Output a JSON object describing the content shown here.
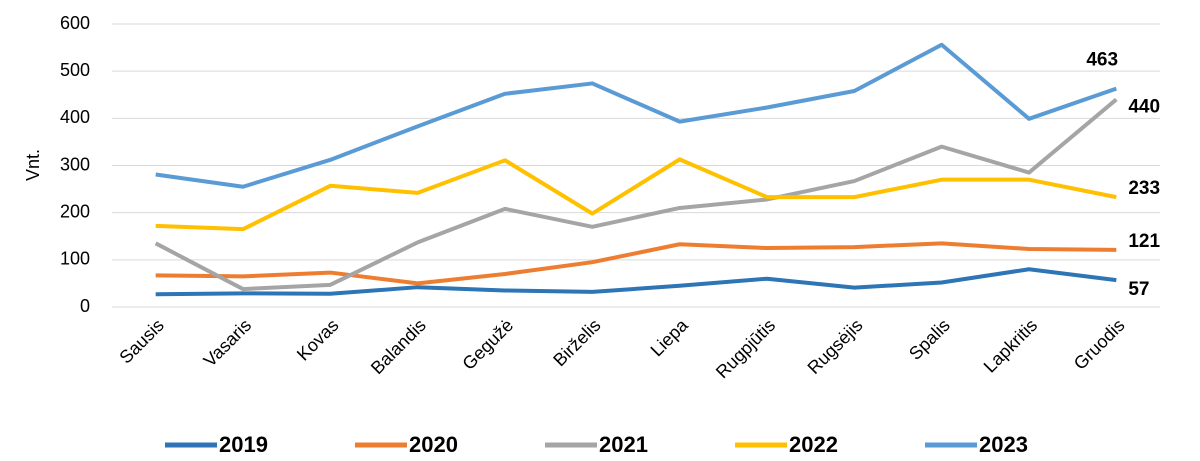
{
  "chart_data": {
    "type": "line",
    "categories": [
      "Sausis",
      "Vasaris",
      "Kovas",
      "Balandis",
      "Gegužė",
      "Birželis",
      "Liepa",
      "Rugpjūtis",
      "Rugsėjis",
      "Spalis",
      "Lapkritis",
      "Gruodis"
    ],
    "series": [
      {
        "name": "2019",
        "color": "#2e75b6",
        "values": [
          27,
          29,
          28,
          42,
          35,
          32,
          45,
          60,
          41,
          52,
          80,
          57
        ]
      },
      {
        "name": "2020",
        "color": "#ed7d31",
        "values": [
          67,
          65,
          73,
          50,
          70,
          95,
          133,
          125,
          127,
          135,
          123,
          121
        ]
      },
      {
        "name": "2021",
        "color": "#a5a5a5",
        "values": [
          135,
          38,
          47,
          137,
          208,
          170,
          210,
          228,
          267,
          340,
          285,
          440
        ]
      },
      {
        "name": "2022",
        "color": "#ffc000",
        "values": [
          172,
          165,
          257,
          242,
          311,
          198,
          313,
          233,
          233,
          270,
          270,
          233
        ]
      },
      {
        "name": "2023",
        "color": "#5b9bd5",
        "values": [
          281,
          255,
          312,
          383,
          452,
          474,
          393,
          423,
          458,
          556,
          399,
          463
        ]
      }
    ],
    "y_label": "Vnt.",
    "ylim": [
      0,
      600
    ],
    "yticks": [
      0,
      100,
      200,
      300,
      400,
      500,
      600
    ],
    "grid": true,
    "legend": "bottom"
  }
}
